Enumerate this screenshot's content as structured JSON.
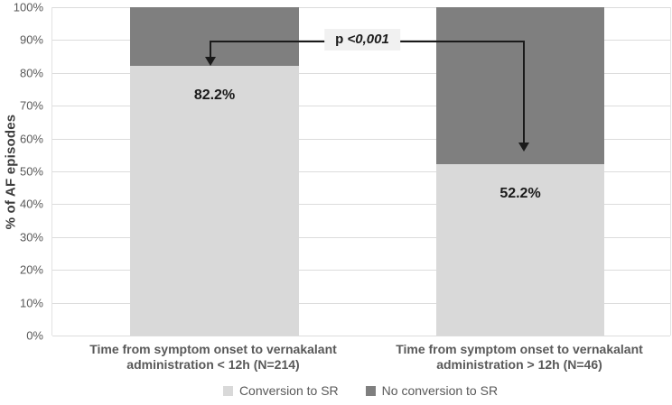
{
  "chart_data": {
    "type": "bar",
    "stacked": true,
    "title": "",
    "ylabel": "% of AF episodes",
    "ylim": [
      0,
      100
    ],
    "yticks": [
      "100%",
      "90%",
      "80%",
      "70%",
      "60%",
      "50%",
      "40%",
      "30%",
      "20%",
      "10%",
      "0%"
    ],
    "grid": true,
    "legend_position": "bottom",
    "categories": [
      "Time from symptom onset to vernakalant administration < 12h (N=214)",
      "Time from symptom onset to vernakalant administration > 12h (N=46)"
    ],
    "series": [
      {
        "name": "Conversion to SR",
        "color": "#d9d9d9",
        "values": [
          82.2,
          52.2
        ]
      },
      {
        "name": "No conversion to SR",
        "color": "#7f7f7f",
        "values": [
          17.8,
          47.8
        ]
      }
    ],
    "bar_labels": [
      "82.2%",
      "52.2%"
    ],
    "annotation": {
      "prefix": "p",
      "value": "<0,001"
    }
  },
  "colors": {
    "gridline": "#dcdcdc",
    "axis_text": "#595959",
    "annotation_line": "#1a1a1a",
    "annotation_bg": "#f1f1f1"
  }
}
